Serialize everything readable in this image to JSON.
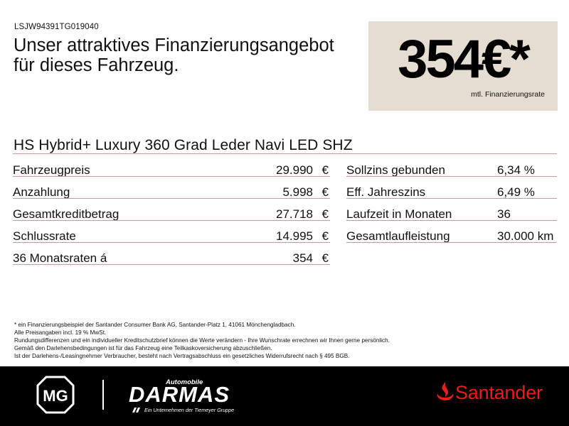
{
  "vin": "LSJW94391TG019040",
  "headline": {
    "line1": "Unser attraktives Finanzierungsangebot",
    "line2": "für dieses Fahrzeug."
  },
  "price": {
    "value": "354€*",
    "caption": "mtl. Finanzierungsrate",
    "box_color": "#e5ddd1"
  },
  "model": "HS Hybrid+ Luxury 360 Grad Leder Navi LED SHZ",
  "left_rows": [
    {
      "label": "Fahrzeugpreis",
      "value": "29.990",
      "currency": "€"
    },
    {
      "label": "Anzahlung",
      "value": "5.998",
      "currency": "€"
    },
    {
      "label": "Gesamtkreditbetrag",
      "value": "27.718",
      "currency": "€"
    },
    {
      "label": "Schlussrate",
      "value": "14.995",
      "currency": "€"
    },
    {
      "label": "36 Monatsraten á",
      "value": "354",
      "currency": "€"
    }
  ],
  "right_rows": [
    {
      "label": "Sollzins gebunden",
      "value": "6,34 %"
    },
    {
      "label": "Eff. Jahreszins",
      "value": "6,49 %"
    },
    {
      "label": "Laufzeit in Monaten",
      "value": "36"
    },
    {
      "label": "Gesamtlaufleistung",
      "value": "30.000 km"
    }
  ],
  "footnote": [
    "* ein Finanzierungsbeispiel der Santander Consumer Bank AG, Santander-Platz 1, 41061 Mönchengladbach.",
    "Alle Preisangaben incl. 19 % MwSt.",
    "Rundungsdifferenzen und ein individueller Kreditschutzbrief können die Werte verändern - Ihre Wunschrate errechnen wir Ihnen gerne persönlich.",
    "Gemäß den Darlehensbedingungen ist für das Fahrzeug eine Teilkaskoversicherung abzuschließen.",
    "Ist der Darlehens-/Leasingnehmer Verbraucher, besteht nach Vertragsabschluss ein gesetzliches Widerrufsrecht nach § 495 BGB."
  ],
  "footer": {
    "brand_logo": "MG",
    "dealer_top": "Automobile",
    "dealer_name": "DARMAS",
    "dealer_tag": "Ein Unternehmen der Tiemeyer Gruppe",
    "bank_name": "Santander",
    "bank_color": "#ea1c1c",
    "background": "#000000",
    "icons": [
      "mg-logo-icon",
      "santander-flame-icon"
    ]
  },
  "colors": {
    "rule": "#c99a9a",
    "text": "#111111"
  }
}
